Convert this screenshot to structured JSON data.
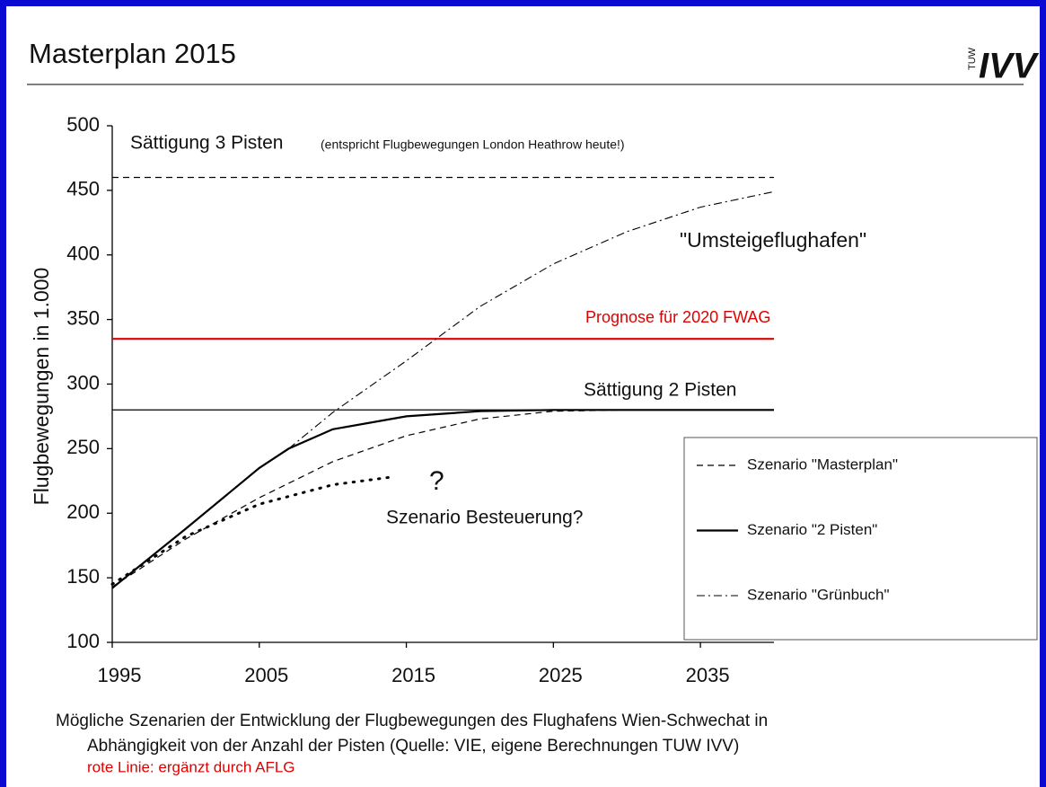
{
  "header": {
    "title": "Masterplan 2015",
    "logo": {
      "small": "TUW",
      "large": "IVV"
    }
  },
  "chart_data": {
    "type": "line",
    "y_label": "Flugbewegungen in 1.000",
    "xlim": [
      1995,
      2040
    ],
    "xticks": [
      1995,
      2005,
      2015,
      2025,
      2035
    ],
    "ylim": [
      100,
      500
    ],
    "yticks": [
      100,
      150,
      200,
      250,
      300,
      350,
      400,
      450,
      500
    ],
    "reference_lines": [
      {
        "label": "Sättigung 3 Pisten",
        "note": "(entspricht Flugbewegungen London Heathrow heute!)",
        "value": 460,
        "style": "dashed",
        "color": "#000000"
      },
      {
        "label": "Prognose für 2020 FWAG",
        "value": 335,
        "style": "solid",
        "color": "#e00000"
      },
      {
        "label": "Sättigung 2 Pisten",
        "value": 280,
        "style": "thin",
        "color": "#000000"
      }
    ],
    "series": [
      {
        "name": "Szenario \"Masterplan\"",
        "style": "dashed",
        "color": "#000000",
        "x": [
          1995,
          2000,
          2005,
          2010,
          2015,
          2020,
          2025,
          2030,
          2040
        ],
        "values": [
          143,
          180,
          212,
          240,
          260,
          273,
          279,
          280,
          280
        ]
      },
      {
        "name": "Szenario \"2 Pisten\"",
        "style": "solid",
        "color": "#000000",
        "x": [
          1995,
          2000,
          2005,
          2007,
          2010,
          2015,
          2020,
          2025,
          2040
        ],
        "values": [
          142,
          188,
          235,
          250,
          265,
          275,
          279,
          280,
          280
        ]
      },
      {
        "name": "Szenario \"Grünbuch\"",
        "style": "dashdot",
        "color": "#000000",
        "x": [
          2007,
          2010,
          2015,
          2020,
          2025,
          2030,
          2035,
          2040
        ],
        "values": [
          250,
          278,
          318,
          360,
          393,
          418,
          437,
          449
        ]
      }
    ],
    "extra_series": {
      "label": "Szenario Besteuerung?",
      "mark": "?",
      "style": "dotted",
      "color": "#000000",
      "x": [
        1995,
        2000,
        2005,
        2010,
        2014
      ],
      "values": [
        145,
        182,
        207,
        222,
        228
      ]
    },
    "annotations": [
      "\"Umsteigeflughafen\""
    ]
  },
  "caption": [
    "Mögliche Szenarien der Entwicklung der Flugbewegungen des Flughafens Wien-Schwechat in",
    "Abhängigkeit von der Anzahl der Pisten (Quelle: VIE, eigene Berechnungen TUW IVV)",
    "rote Linie: ergänzt durch AFLG"
  ]
}
